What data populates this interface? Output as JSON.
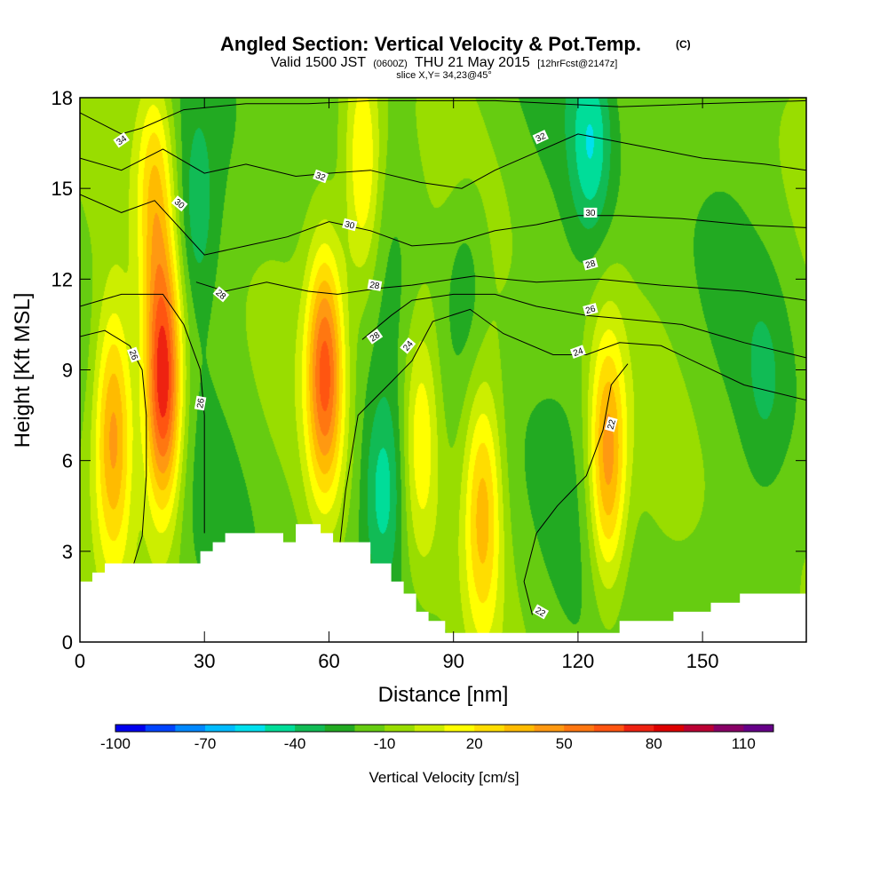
{
  "chart_data": {
    "type": "heatmap",
    "title": "Angled Section: Vertical Velocity & Pot.Temp.",
    "title_mark": "(C)",
    "subtitle": {
      "prefix": "Valid 1500 JST",
      "utc": "(0600Z)",
      "date": "THU 21 May 2015",
      "forecast": "[12hrFcst@2147z]"
    },
    "slice_label": "slice X,Y= 34,23@45°",
    "xlabel": "Distance [nm]",
    "ylabel": "Height [Kft MSL]",
    "xlim": [
      0,
      175
    ],
    "ylim": [
      0,
      18
    ],
    "x_ticks": [
      0,
      30,
      60,
      90,
      120,
      150
    ],
    "y_ticks": [
      0,
      3,
      6,
      9,
      12,
      15,
      18
    ],
    "x_tick_labels": [
      "0",
      "30",
      "60",
      "90",
      "120",
      "150"
    ],
    "y_tick_labels": [
      "0",
      "3",
      "6",
      "9",
      "12",
      "15",
      "18"
    ],
    "background_value": -15,
    "updrafts": [
      {
        "x": 20,
        "y": 8.5,
        "peak": 80
      },
      {
        "x": 8,
        "y": 7.0,
        "peak": 40
      },
      {
        "x": 59,
        "y": 9.0,
        "peak": 60
      },
      {
        "x": 127,
        "y": 6.0,
        "peak": 45
      },
      {
        "x": 82,
        "y": 7.0,
        "peak": 20
      },
      {
        "x": 97,
        "y": 4.5,
        "peak": 30
      },
      {
        "x": 68,
        "y": 15.5,
        "peak": 25
      },
      {
        "x": 18,
        "y": 15.0,
        "peak": 25
      }
    ],
    "downdrafts": [
      {
        "x": 73,
        "y": 5.0,
        "peak": -45
      },
      {
        "x": 28,
        "y": 14.0,
        "peak": -35
      },
      {
        "x": 123,
        "y": 16.5,
        "peak": -45
      },
      {
        "x": 93,
        "y": 12.0,
        "peak": -30
      },
      {
        "x": 165,
        "y": 8.5,
        "peak": -25
      }
    ],
    "terrain_height": [
      [
        0,
        2.0
      ],
      [
        3,
        2.0
      ],
      [
        3,
        2.3
      ],
      [
        6,
        2.3
      ],
      [
        6,
        2.6
      ],
      [
        29,
        2.6
      ],
      [
        29,
        3.0
      ],
      [
        32,
        3.0
      ],
      [
        32,
        3.3
      ],
      [
        35,
        3.3
      ],
      [
        35,
        3.6
      ],
      [
        49,
        3.6
      ],
      [
        49,
        3.3
      ],
      [
        52,
        3.3
      ],
      [
        52,
        3.9
      ],
      [
        58,
        3.9
      ],
      [
        58,
        3.6
      ],
      [
        61,
        3.6
      ],
      [
        61,
        3.3
      ],
      [
        70,
        3.3
      ],
      [
        70,
        2.6
      ],
      [
        75,
        2.6
      ],
      [
        75,
        2.0
      ],
      [
        78,
        2.0
      ],
      [
        78,
        1.6
      ],
      [
        81,
        1.6
      ],
      [
        81,
        1.0
      ],
      [
        84,
        1.0
      ],
      [
        84,
        0.7
      ],
      [
        88,
        0.7
      ],
      [
        88,
        0.3
      ],
      [
        130,
        0.3
      ],
      [
        130,
        0.7
      ],
      [
        143,
        0.7
      ],
      [
        143,
        1.0
      ],
      [
        152,
        1.0
      ],
      [
        152,
        1.3
      ],
      [
        159,
        1.3
      ],
      [
        159,
        1.6
      ],
      [
        175,
        1.6
      ]
    ],
    "isentropes": [
      {
        "level": 22,
        "points": [
          [
            109,
            0.9
          ],
          [
            107,
            2.0
          ],
          [
            110,
            3.6
          ],
          [
            115,
            4.5
          ],
          [
            122,
            5.5
          ],
          [
            126,
            7.0
          ],
          [
            128,
            8.5
          ],
          [
            132,
            9.2
          ]
        ]
      },
      {
        "level": 24,
        "points": [
          [
            62,
            2.4
          ],
          [
            64,
            5.0
          ],
          [
            67,
            7.5
          ],
          [
            75,
            8.6
          ],
          [
            80,
            9.3
          ],
          [
            85,
            10.6
          ],
          [
            94,
            11.0
          ],
          [
            102,
            10.2
          ],
          [
            114,
            9.5
          ],
          [
            122,
            9.5
          ],
          [
            130,
            9.9
          ],
          [
            140,
            9.8
          ],
          [
            160,
            8.5
          ],
          [
            175,
            8.0
          ]
        ]
      },
      {
        "level": 26,
        "points": [
          [
            0,
            10.1
          ],
          [
            6,
            10.3
          ],
          [
            12,
            9.8
          ],
          [
            15,
            9.0
          ],
          [
            16,
            7.5
          ],
          [
            16,
            5.5
          ],
          [
            15,
            3.5
          ],
          [
            13,
            2.6
          ]
        ]
      },
      {
        "level": 26,
        "points": [
          [
            68,
            10.0
          ],
          [
            75,
            10.8
          ],
          [
            80,
            11.3
          ],
          [
            90,
            11.5
          ],
          [
            100,
            11.5
          ],
          [
            110,
            11.1
          ],
          [
            122,
            10.8
          ],
          [
            130,
            10.7
          ],
          [
            145,
            10.5
          ],
          [
            160,
            9.9
          ],
          [
            175,
            9.4
          ]
        ]
      },
      {
        "level": 28,
        "points": [
          [
            0,
            11.1
          ],
          [
            10,
            11.5
          ],
          [
            20,
            11.5
          ],
          [
            25,
            10.5
          ],
          [
            29,
            9.0
          ],
          [
            30,
            7.5
          ],
          [
            30,
            5.5
          ],
          [
            30,
            3.6
          ]
        ]
      },
      {
        "level": 28,
        "points": [
          [
            28,
            11.9
          ],
          [
            35,
            11.6
          ],
          [
            45,
            11.9
          ],
          [
            55,
            11.6
          ],
          [
            62,
            11.5
          ],
          [
            72,
            11.7
          ],
          [
            80,
            11.8
          ],
          [
            95,
            12.1
          ],
          [
            110,
            11.9
          ],
          [
            125,
            12.0
          ],
          [
            140,
            11.8
          ],
          [
            160,
            11.6
          ],
          [
            175,
            11.3
          ]
        ]
      },
      {
        "level": 30,
        "points": [
          [
            0,
            14.8
          ],
          [
            10,
            14.2
          ],
          [
            18,
            14.6
          ],
          [
            24,
            13.7
          ],
          [
            30,
            12.8
          ],
          [
            40,
            13.1
          ],
          [
            50,
            13.4
          ],
          [
            60,
            13.9
          ],
          [
            70,
            13.6
          ],
          [
            80,
            13.1
          ],
          [
            90,
            13.2
          ],
          [
            100,
            13.6
          ],
          [
            110,
            13.8
          ],
          [
            120,
            14.1
          ],
          [
            130,
            14.1
          ],
          [
            145,
            14.0
          ],
          [
            160,
            13.8
          ],
          [
            175,
            13.7
          ]
        ]
      },
      {
        "level": 32,
        "points": [
          [
            0,
            16.0
          ],
          [
            10,
            15.6
          ],
          [
            20,
            16.3
          ],
          [
            30,
            15.5
          ],
          [
            40,
            15.8
          ],
          [
            52,
            15.4
          ],
          [
            60,
            15.5
          ],
          [
            70,
            15.6
          ],
          [
            82,
            15.2
          ],
          [
            92,
            15.0
          ],
          [
            100,
            15.6
          ],
          [
            110,
            16.2
          ],
          [
            120,
            16.8
          ],
          [
            135,
            16.4
          ],
          [
            150,
            16.0
          ],
          [
            165,
            15.8
          ],
          [
            175,
            15.6
          ]
        ]
      },
      {
        "level": 34,
        "points": [
          [
            0,
            17.5
          ],
          [
            10,
            16.8
          ],
          [
            15,
            17.0
          ],
          [
            25,
            17.6
          ],
          [
            40,
            17.8
          ],
          [
            55,
            17.8
          ],
          [
            70,
            17.9
          ],
          [
            85,
            17.9
          ],
          [
            100,
            17.9
          ],
          [
            115,
            17.8
          ],
          [
            130,
            17.7
          ],
          [
            150,
            17.8
          ],
          [
            175,
            17.9
          ]
        ]
      }
    ],
    "contour_labels": [
      {
        "text": "34",
        "x": 10,
        "y": 16.6,
        "angle": -35
      },
      {
        "text": "30",
        "x": 24,
        "y": 14.5,
        "angle": 40
      },
      {
        "text": "28",
        "x": 34,
        "y": 11.5,
        "angle": 40
      },
      {
        "text": "26",
        "x": 13,
        "y": 9.5,
        "angle": 70
      },
      {
        "text": "26",
        "x": 29,
        "y": 7.9,
        "angle": -80
      },
      {
        "text": "32",
        "x": 58,
        "y": 15.4,
        "angle": 20
      },
      {
        "text": "30",
        "x": 65,
        "y": 13.8,
        "angle": 15
      },
      {
        "text": "28",
        "x": 71,
        "y": 11.8,
        "angle": 10
      },
      {
        "text": "28",
        "x": 71,
        "y": 10.1,
        "angle": -35
      },
      {
        "text": "24",
        "x": 79,
        "y": 9.8,
        "angle": -50
      },
      {
        "text": "32",
        "x": 111,
        "y": 16.7,
        "angle": -25
      },
      {
        "text": "30",
        "x": 123,
        "y": 14.2,
        "angle": 0
      },
      {
        "text": "28",
        "x": 123,
        "y": 12.5,
        "angle": -15
      },
      {
        "text": "26",
        "x": 123,
        "y": 11.0,
        "angle": -15
      },
      {
        "text": "24",
        "x": 120,
        "y": 9.6,
        "angle": -20
      },
      {
        "text": "22",
        "x": 128,
        "y": 7.2,
        "angle": -75
      },
      {
        "text": "22",
        "x": 111,
        "y": 1.0,
        "angle": 30
      }
    ],
    "colorbar": {
      "label": "Vertical Velocity [cm/s]",
      "levels": [
        -100,
        -90,
        -80,
        -70,
        -60,
        -50,
        -40,
        -30,
        -20,
        -10,
        0,
        10,
        20,
        30,
        40,
        50,
        60,
        70,
        80,
        90,
        100,
        110,
        120
      ],
      "colors": [
        "#0000ee",
        "#0044ff",
        "#0088ff",
        "#00bbff",
        "#00e0ee",
        "#00dd99",
        "#11bb55",
        "#22aa22",
        "#66cc11",
        "#99dd00",
        "#ccee00",
        "#ffff00",
        "#ffdd00",
        "#ffbb00",
        "#ff9911",
        "#ff7711",
        "#ff5511",
        "#ee2211",
        "#dd0000",
        "#bb0033",
        "#880066",
        "#660088"
      ],
      "tick_values": [
        -100,
        -70,
        -40,
        -10,
        20,
        50,
        80,
        110
      ],
      "tick_labels": [
        "-100",
        "-70",
        "-40",
        "-10",
        "20",
        "50",
        "80",
        "110"
      ]
    }
  }
}
